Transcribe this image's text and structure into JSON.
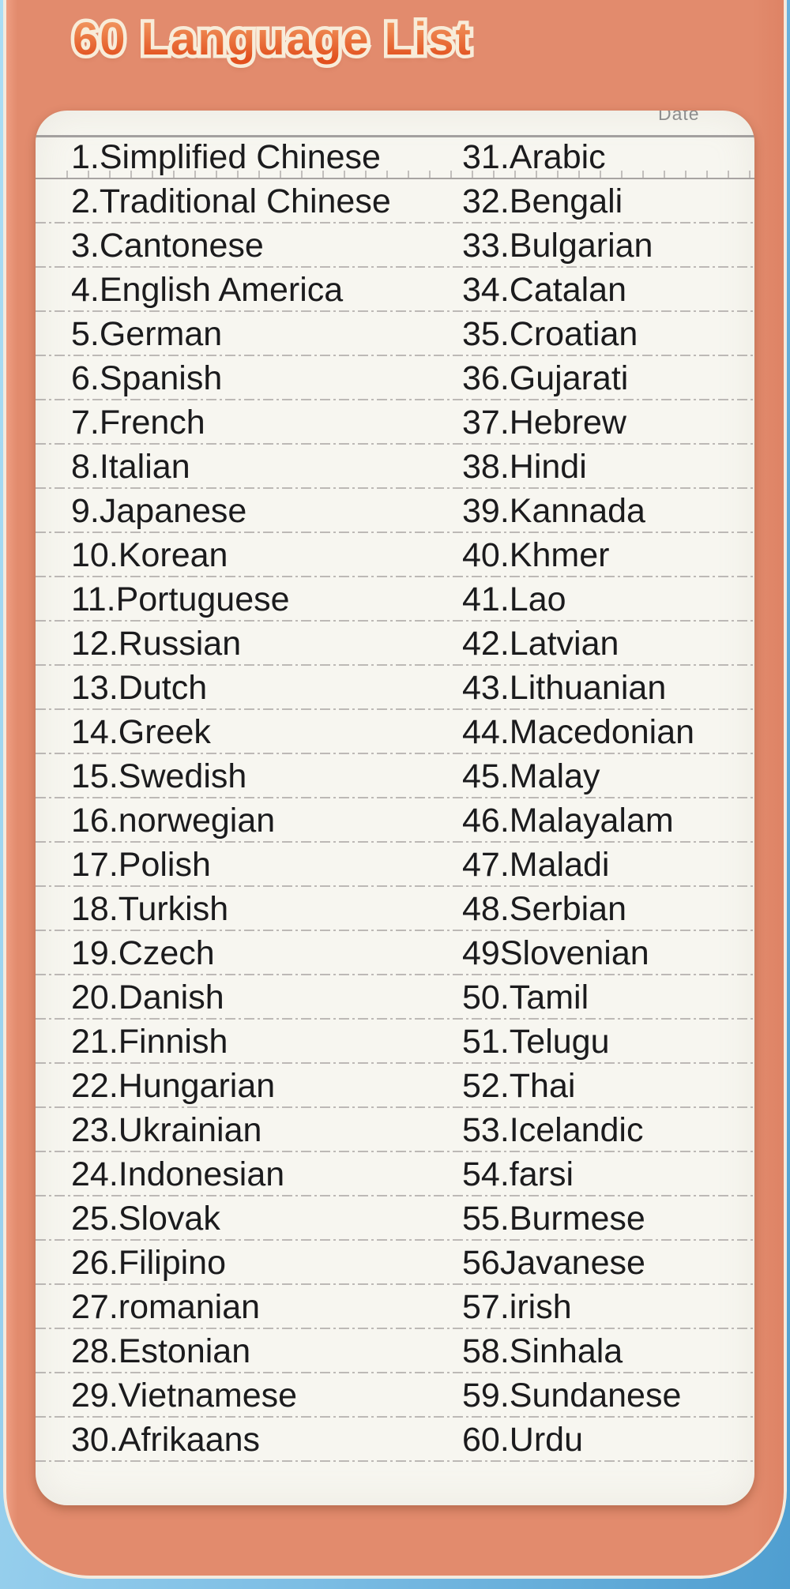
{
  "title": "60 Language List",
  "paper": {
    "date_label": "Date",
    "rows": [
      {
        "left": "1.Simplified Chinese",
        "right": "31.Arabic"
      },
      {
        "left": "2.Traditional Chinese",
        "right": "32.Bengali"
      },
      {
        "left": "3.Cantonese",
        "right": "33.Bulgarian"
      },
      {
        "left": "4.English America",
        "right": "34.Catalan"
      },
      {
        "left": "5.German",
        "right": "35.Croatian"
      },
      {
        "left": "6.Spanish",
        "right": "36.Gujarati"
      },
      {
        "left": "7.French",
        "right": "37.Hebrew"
      },
      {
        "left": "8.Italian",
        "right": "38.Hindi"
      },
      {
        "left": "9.Japanese",
        "right": "39.Kannada"
      },
      {
        "left": "10.Korean",
        "right": "40.Khmer"
      },
      {
        "left": "11.Portuguese",
        "right": "41.Lao"
      },
      {
        "left": "12.Russian",
        "right": "42.Latvian"
      },
      {
        "left": "13.Dutch",
        "right": "43.Lithuanian"
      },
      {
        "left": "14.Greek",
        "right": "44.Macedonian"
      },
      {
        "left": "15.Swedish",
        "right": "45.Malay"
      },
      {
        "left": "16.norwegian",
        "right": "46.Malayalam"
      },
      {
        "left": "17.Polish",
        "right": "47.Maladi"
      },
      {
        "left": "18.Turkish",
        "right": "48.Serbian"
      },
      {
        "left": "19.Czech",
        "right": "49Slovenian"
      },
      {
        "left": "20.Danish",
        "right": "50.Tamil"
      },
      {
        "left": "21.Finnish",
        "right": "51.Telugu"
      },
      {
        "left": "22.Hungarian",
        "right": "52.Thai"
      },
      {
        "left": "23.Ukrainian",
        "right": "53.Icelandic"
      },
      {
        "left": "24.Indonesian",
        "right": "54.farsi"
      },
      {
        "left": "25.Slovak",
        "right": "55.Burmese"
      },
      {
        "left": "26.Filipino",
        "right": "56Javanese"
      },
      {
        "left": "27.romanian",
        "right": "57.irish"
      },
      {
        "left": "28.Estonian",
        "right": "58.Sinhala"
      },
      {
        "left": "29.Vietnamese",
        "right": "59.Sundanese"
      },
      {
        "left": "30.Afrikaans",
        "right": "60.Urdu"
      }
    ]
  },
  "colors": {
    "background_blue_light": "#abddf4",
    "background_blue_dark": "#4f9ed0",
    "card_salmon": "#e28b6d",
    "card_outline": "#f3eade",
    "paper": "#f7f6f0",
    "rule_line": "#8d8787",
    "list_text": "#1b1b1d",
    "title_gradient_top": "#f29a63",
    "title_gradient_bottom": "#e2511e",
    "title_outline": "#f8ecd9",
    "date_text": "#8d8d8d"
  }
}
